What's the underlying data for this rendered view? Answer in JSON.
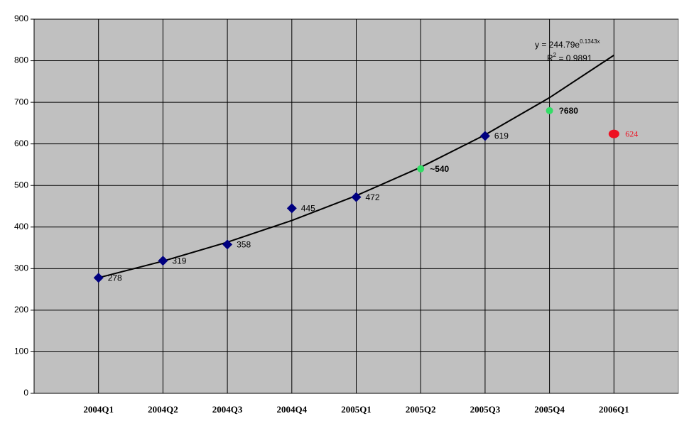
{
  "chart_data": {
    "type": "line",
    "categories": [
      "2004Q1",
      "2004Q2",
      "2004Q3",
      "2004Q4",
      "2005Q1",
      "2005Q2",
      "2005Q3",
      "2005Q4",
      "2006Q1"
    ],
    "ylim": [
      0,
      900
    ],
    "yticks": [
      0,
      100,
      200,
      300,
      400,
      500,
      600,
      700,
      800,
      900
    ],
    "grid": true,
    "plot_background": "#c0c0c0",
    "series": [
      {
        "color": "#000080",
        "marker": "diamond",
        "values": [
          278,
          319,
          358,
          445,
          472,
          null,
          619,
          null,
          null
        ],
        "label_color": "#000000"
      },
      {
        "color": "#33dd66",
        "marker": "circle",
        "values": [
          null,
          null,
          null,
          null,
          null,
          540,
          null,
          680,
          null
        ],
        "value_labels": [
          null,
          null,
          null,
          null,
          null,
          "~540",
          null,
          "?680",
          null
        ],
        "label_color": "#000000"
      },
      {
        "color": "#ee1122",
        "marker": "ellipse",
        "values": [
          null,
          null,
          null,
          null,
          null,
          null,
          null,
          null,
          624
        ],
        "label_color": "#ee1122"
      }
    ],
    "trendline": {
      "color": "#000000",
      "values": [
        278.0,
        318.0,
        363.6,
        415.8,
        475.5,
        543.8,
        621.9,
        711.2,
        813.3
      ],
      "equation": {
        "base": "y = 244.79e",
        "exponent": "0.1343x"
      },
      "r_squared": {
        "base": "R",
        "exponent": "2",
        "rest": " = 0.9891"
      }
    }
  }
}
